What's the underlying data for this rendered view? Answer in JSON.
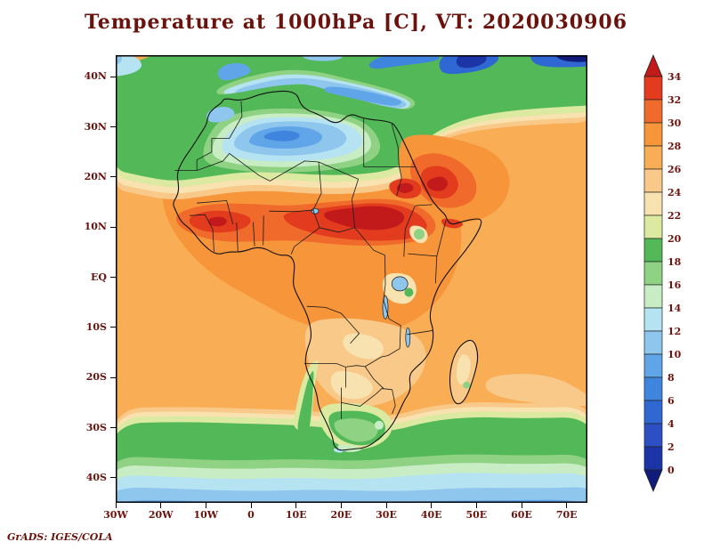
{
  "title": "Temperature at 1000hPa [C], VT: 2020030906",
  "credit": "GrADS: IGES/COLA",
  "colors": {
    "annotation": "#6b120c",
    "frame": "#000000",
    "background": "#ffffff"
  },
  "chart_data": {
    "type": "heatmap",
    "title": "Temperature at 1000hPa [C], VT: 2020030906",
    "variable": "Temperature",
    "level": "1000hPa",
    "units": "C",
    "valid_time": "2020030906",
    "region": "Africa and surroundings",
    "lon_range": [
      -30,
      74.6
    ],
    "lat_range": [
      -45,
      44.3
    ],
    "grid": false,
    "legend_position": "right-colorbar",
    "x_ticks": [
      {
        "label": "30W",
        "lon": -30
      },
      {
        "label": "20W",
        "lon": -20
      },
      {
        "label": "10W",
        "lon": -10
      },
      {
        "label": "0",
        "lon": 0
      },
      {
        "label": "10E",
        "lon": 10
      },
      {
        "label": "20E",
        "lon": 20
      },
      {
        "label": "30E",
        "lon": 30
      },
      {
        "label": "40E",
        "lon": 40
      },
      {
        "label": "50E",
        "lon": 50
      },
      {
        "label": "60E",
        "lon": 60
      },
      {
        "label": "70E",
        "lon": 70
      }
    ],
    "y_ticks": [
      {
        "label": "40N",
        "lat": 40
      },
      {
        "label": "30N",
        "lat": 30
      },
      {
        "label": "20N",
        "lat": 20
      },
      {
        "label": "10N",
        "lat": 10
      },
      {
        "label": "EQ",
        "lat": 0
      },
      {
        "label": "10S",
        "lat": -10
      },
      {
        "label": "20S",
        "lat": -20
      },
      {
        "label": "30S",
        "lat": -30
      },
      {
        "label": "40S",
        "lat": -40
      }
    ],
    "colorbar_levels": [
      34,
      32,
      30,
      28,
      26,
      24,
      22,
      20,
      18,
      16,
      14,
      12,
      10,
      8,
      6,
      4,
      2,
      0
    ],
    "colorbar_colors_high_to_low": [
      "#c21a1a",
      "#e23b1e",
      "#ef6a2b",
      "#f6953a",
      "#f9ad55",
      "#f9c98a",
      "#f8e2b0",
      "#dbeaa0",
      "#53b858",
      "#8fd284",
      "#c8ecc4",
      "#b5e3f2",
      "#8ec6ee",
      "#60a5e8",
      "#3f85dd",
      "#2f68d2",
      "#2d4fc4",
      "#1c35a6",
      "#101b7a"
    ],
    "notable_features": [
      "Hot band (30 to 34+ C) across the Sahel from West Africa through Chad and Sudan, darkest reds near 10-15N",
      "Cool pool (8-14 C) over the central Sahara ringed by green (16-20 C)",
      "Blue Mediterranean and dark blue (<0-6 C) patches over the Black Sea / Caspian region at top right",
      "Green belt (16-22 C) across the southern ocean near 30-40S merging with cool South Africa",
      "Warm (26-30 C) tropical oceans surrounding the continent; red spots along the Red Sea coasts"
    ]
  }
}
